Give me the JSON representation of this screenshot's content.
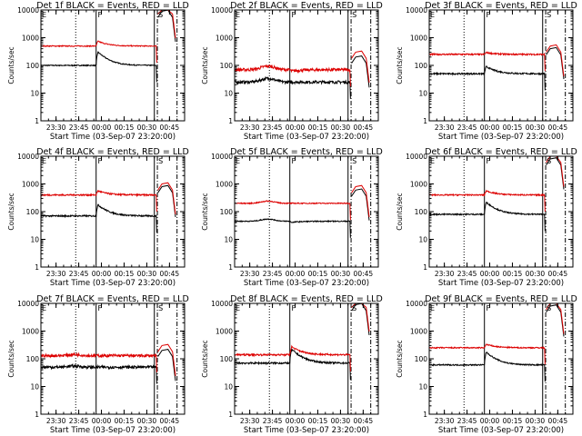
{
  "figure": {
    "background": "#ffffff"
  },
  "chart_data": {
    "type": "line",
    "scale": "log",
    "ylim": [
      1,
      10000
    ],
    "yticks": [
      1,
      10,
      100,
      1000,
      10000
    ],
    "ytick_labels": [
      "1",
      "10",
      "100",
      "1000",
      "10000"
    ],
    "ylabel": "Counts/sec",
    "xlabel": "Start Time (03-Sep-07 23:20:00)",
    "xlim_minutes": [
      0,
      95
    ],
    "xticks_minutes": [
      10,
      25,
      40,
      55,
      70,
      85
    ],
    "xtick_labels": [
      "23:30",
      "23:45",
      "00:00",
      "00:15",
      "00:30",
      "00:45"
    ],
    "colors": {
      "events": "#000000",
      "lld": "#dd0000",
      "axes": "#000000"
    },
    "markers": {
      "dotted_minutes": 23,
      "solid_minutes": [
        36.5,
        75
      ],
      "dashdot_minutes": [
        77,
        90
      ],
      "labels": [
        {
          "text": "E",
          "minutes": 0
        },
        {
          "text": "F",
          "minutes": 37
        },
        {
          "text": "S",
          "minutes": 77
        }
      ]
    },
    "panels": [
      {
        "title": "Det 1f BLACK = Events, RED = LLD",
        "lld": 500,
        "events": 100,
        "lld_peak": 800,
        "events_peak": 350,
        "lld_end": 12000,
        "events_end": 9000,
        "noise": 0.04,
        "bump": 0
      },
      {
        "title": "Det 2f BLACK = Events, RED = LLD",
        "lld": 70,
        "events": 25,
        "lld_peak": 60,
        "events_peak": 25,
        "lld_end": 300,
        "events_end": 200,
        "noise": 0.12,
        "bump": 0.35
      },
      {
        "title": "Det 3f BLACK = Events, RED = LLD",
        "lld": 250,
        "events": 50,
        "lld_peak": 300,
        "events_peak": 100,
        "lld_end": 500,
        "events_end": 400,
        "noise": 0.06,
        "bump": 0
      },
      {
        "title": "Det 4f BLACK = Events, RED = LLD",
        "lld": 400,
        "events": 70,
        "lld_peak": 600,
        "events_peak": 200,
        "lld_end": 1000,
        "events_end": 800,
        "noise": 0.06,
        "bump": 0
      },
      {
        "title": "Det 5f BLACK = Events, RED = LLD",
        "lld": 200,
        "events": 45,
        "lld_peak": 200,
        "events_peak": 40,
        "lld_end": 800,
        "events_end": 600,
        "noise": 0.04,
        "bump": 0.2
      },
      {
        "title": "Det 6f BLACK = Events, RED = LLD",
        "lld": 400,
        "events": 80,
        "lld_peak": 600,
        "events_peak": 250,
        "lld_end": 10000,
        "events_end": 8000,
        "noise": 0.05,
        "bump": 0
      },
      {
        "title": "Det 7f BLACK = Events, RED = LLD",
        "lld": 130,
        "events": 50,
        "lld_peak": 130,
        "events_peak": 50,
        "lld_end": 300,
        "events_end": 200,
        "noise": 0.12,
        "bump": 0.1
      },
      {
        "title": "Det 8f BLACK = Events, RED = LLD",
        "lld": 140,
        "events": 70,
        "lld_peak": 300,
        "events_peak": 250,
        "lld_end": 12000,
        "events_end": 9000,
        "noise": 0.07,
        "bump": 0
      },
      {
        "title": "Det 9f BLACK = Events, RED = LLD",
        "lld": 250,
        "events": 60,
        "lld_peak": 350,
        "events_peak": 200,
        "lld_end": 10000,
        "events_end": 8000,
        "noise": 0.05,
        "bump": 0
      }
    ]
  }
}
